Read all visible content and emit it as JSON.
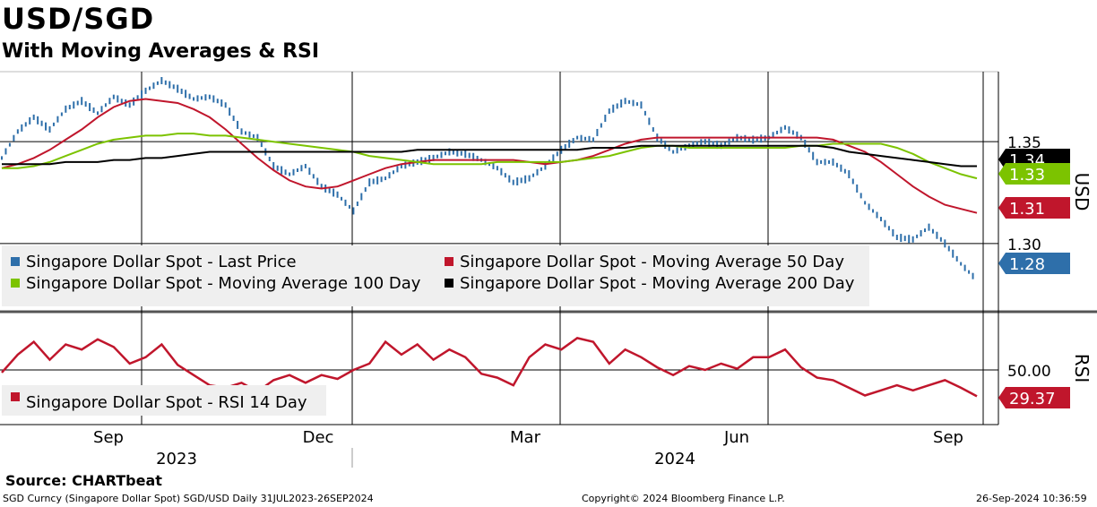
{
  "header": {
    "title": "USD/SGD",
    "subtitle": "With Moving Averages & RSI"
  },
  "chart_data": {
    "type": "line",
    "title": "USD/SGD",
    "subtitle": "With Moving Averages & RSI",
    "x_ticks": [
      "Sep",
      "Dec",
      "Mar",
      "Jun",
      "Sep"
    ],
    "year_labels": [
      "2023",
      "2024"
    ],
    "date_range": "31JUL2023-26SEP2024",
    "price_panel": {
      "ylabel": "USD",
      "ylim": [
        1.27,
        1.38
      ],
      "y_ticks": [
        "1.35",
        "1.30"
      ],
      "grid_values": [
        1.35,
        1.3
      ],
      "end_badges": [
        {
          "label": "1.34",
          "color": "#000000"
        },
        {
          "label": "1.33",
          "color": "#7cc300"
        },
        {
          "label": "1.31",
          "color": "#c0162c"
        },
        {
          "label": "1.28",
          "color": "#2e6faa"
        }
      ],
      "series": [
        {
          "name": "Singapore Dollar Spot - Last Price",
          "color": "#2e6faa",
          "values": [
            1.342,
            1.355,
            1.362,
            1.356,
            1.366,
            1.37,
            1.364,
            1.372,
            1.368,
            1.375,
            1.38,
            1.376,
            1.371,
            1.372,
            1.368,
            1.355,
            1.352,
            1.338,
            1.334,
            1.338,
            1.328,
            1.324,
            1.316,
            1.33,
            1.332,
            1.338,
            1.34,
            1.342,
            1.345,
            1.344,
            1.341,
            1.337,
            1.33,
            1.332,
            1.338,
            1.346,
            1.352,
            1.351,
            1.365,
            1.37,
            1.368,
            1.352,
            1.345,
            1.348,
            1.35,
            1.348,
            1.352,
            1.351,
            1.352,
            1.357,
            1.352,
            1.34,
            1.34,
            1.334,
            1.32,
            1.312,
            1.303,
            1.302,
            1.308,
            1.3,
            1.29,
            1.282
          ]
        },
        {
          "name": "Singapore Dollar Spot - Moving Average 50 Day",
          "color": "#c0162c",
          "values": [
            1.337,
            1.339,
            1.342,
            1.346,
            1.351,
            1.356,
            1.362,
            1.367,
            1.37,
            1.371,
            1.37,
            1.369,
            1.366,
            1.362,
            1.356,
            1.349,
            1.342,
            1.336,
            1.331,
            1.328,
            1.327,
            1.328,
            1.331,
            1.334,
            1.337,
            1.339,
            1.34,
            1.341,
            1.341,
            1.341,
            1.341,
            1.341,
            1.341,
            1.34,
            1.339,
            1.34,
            1.341,
            1.343,
            1.346,
            1.349,
            1.351,
            1.352,
            1.352,
            1.352,
            1.352,
            1.352,
            1.352,
            1.352,
            1.352,
            1.352,
            1.352,
            1.352,
            1.351,
            1.348,
            1.345,
            1.34,
            1.334,
            1.328,
            1.323,
            1.319,
            1.317,
            1.315
          ]
        },
        {
          "name": "Singapore Dollar Spot - Moving Average 100 Day",
          "color": "#7cc300",
          "values": [
            1.337,
            1.337,
            1.338,
            1.34,
            1.343,
            1.346,
            1.349,
            1.351,
            1.352,
            1.353,
            1.353,
            1.354,
            1.354,
            1.353,
            1.353,
            1.352,
            1.351,
            1.35,
            1.349,
            1.348,
            1.347,
            1.346,
            1.345,
            1.343,
            1.342,
            1.341,
            1.34,
            1.339,
            1.339,
            1.339,
            1.339,
            1.34,
            1.34,
            1.34,
            1.34,
            1.34,
            1.341,
            1.342,
            1.343,
            1.345,
            1.347,
            1.348,
            1.348,
            1.347,
            1.347,
            1.347,
            1.347,
            1.347,
            1.347,
            1.347,
            1.348,
            1.348,
            1.349,
            1.349,
            1.349,
            1.349,
            1.347,
            1.344,
            1.34,
            1.337,
            1.334,
            1.332
          ]
        },
        {
          "name": "Singapore Dollar Spot - Moving Average 200 Day",
          "color": "#000000",
          "values": [
            1.339,
            1.339,
            1.339,
            1.339,
            1.34,
            1.34,
            1.34,
            1.341,
            1.341,
            1.342,
            1.342,
            1.343,
            1.344,
            1.345,
            1.345,
            1.345,
            1.345,
            1.345,
            1.345,
            1.345,
            1.345,
            1.345,
            1.345,
            1.345,
            1.345,
            1.345,
            1.346,
            1.346,
            1.346,
            1.346,
            1.346,
            1.346,
            1.346,
            1.346,
            1.346,
            1.346,
            1.346,
            1.347,
            1.347,
            1.347,
            1.348,
            1.348,
            1.348,
            1.348,
            1.348,
            1.348,
            1.348,
            1.348,
            1.348,
            1.348,
            1.348,
            1.348,
            1.347,
            1.345,
            1.344,
            1.343,
            1.342,
            1.341,
            1.34,
            1.339,
            1.338,
            1.338
          ]
        }
      ]
    },
    "rsi_panel": {
      "ylabel": "RSI",
      "ylim": [
        10,
        90
      ],
      "y_ticks": [
        "50.00"
      ],
      "grid_values": [
        50
      ],
      "end_badge": {
        "label": "29.37",
        "color": "#c0162c"
      },
      "series": [
        {
          "name": "Singapore Dollar Spot - RSI 14 Day",
          "color": "#c0162c",
          "values": [
            48,
            62,
            72,
            58,
            70,
            66,
            74,
            68,
            55,
            60,
            70,
            54,
            46,
            38,
            36,
            40,
            33,
            42,
            46,
            40,
            46,
            43,
            50,
            55,
            72,
            62,
            70,
            58,
            66,
            60,
            47,
            44,
            38,
            60,
            70,
            66,
            75,
            72,
            55,
            66,
            60,
            52,
            46,
            53,
            50,
            55,
            51,
            60,
            60,
            66,
            52,
            44,
            42,
            36,
            30,
            34,
            38,
            34,
            38,
            42,
            36,
            29.37
          ]
        }
      ]
    },
    "legend": {
      "price": [
        {
          "label": "Singapore Dollar Spot - Last Price",
          "color": "#2e6faa"
        },
        {
          "label": "Singapore Dollar Spot - Moving Average 50 Day",
          "color": "#c0162c"
        },
        {
          "label": "Singapore Dollar Spot - Moving Average 100 Day",
          "color": "#7cc300"
        },
        {
          "label": "Singapore Dollar Spot - Moving Average 200 Day",
          "color": "#000000"
        }
      ],
      "rsi": [
        {
          "label": "Singapore Dollar Spot - RSI 14 Day",
          "color": "#c0162c"
        }
      ]
    }
  },
  "footer": {
    "source": "Source: CHARTbeat",
    "ticker_info": "SGD Curncy (Singapore Dollar Spot) SGD/USD  Daily 31JUL2023-26SEP2024",
    "copyright": "Copyright© 2024 Bloomberg Finance L.P.",
    "timestamp": "26-Sep-2024 10:36:59"
  }
}
